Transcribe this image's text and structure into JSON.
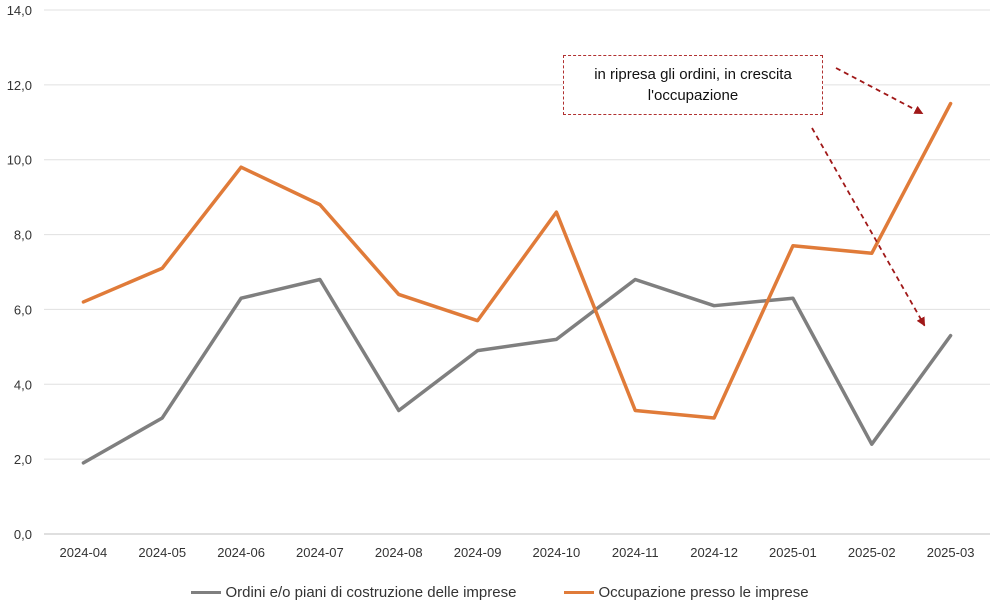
{
  "chart_data": {
    "type": "line",
    "categories": [
      "2024-04",
      "2024-05",
      "2024-06",
      "2024-07",
      "2024-08",
      "2024-09",
      "2024-10",
      "2024-11",
      "2024-12",
      "2025-01",
      "2025-02",
      "2025-03"
    ],
    "series": [
      {
        "name": "Ordini e/o piani di costruzione delle imprese",
        "color": "#7f7f7f",
        "values": [
          1.9,
          3.1,
          6.3,
          6.8,
          3.3,
          4.9,
          5.2,
          6.8,
          6.1,
          6.3,
          2.4,
          5.3
        ]
      },
      {
        "name": "Occupazione presso le imprese",
        "color": "#e07b39",
        "values": [
          6.2,
          7.1,
          9.8,
          8.8,
          6.4,
          5.7,
          8.6,
          3.3,
          3.1,
          7.7,
          7.5,
          11.5
        ]
      }
    ],
    "yticks": [
      "0,0",
      "2,0",
      "4,0",
      "6,0",
      "8,0",
      "10,0",
      "12,0",
      "14,0"
    ],
    "ylim": [
      0,
      14
    ],
    "grid": true,
    "legend_position": "bottom",
    "annotation": {
      "text": "in ripresa gli ordini, in crescita l'occupazione",
      "arrow_color": "#a01818"
    }
  }
}
